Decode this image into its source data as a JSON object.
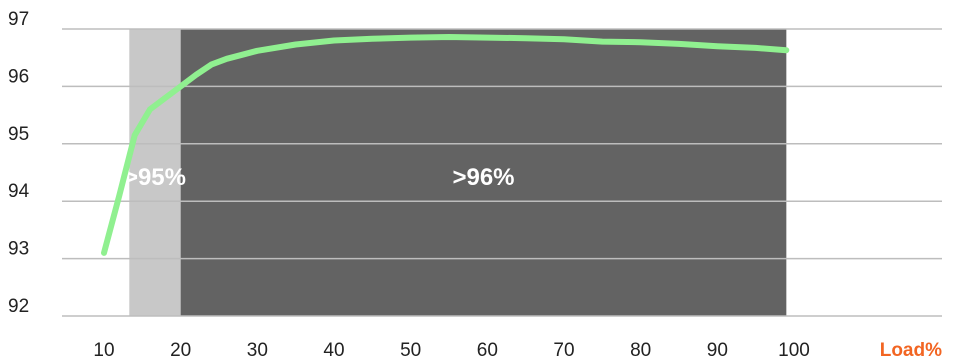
{
  "chart_data": {
    "type": "line",
    "xlabel": "Load%",
    "ylabel": "",
    "xlim": [
      10,
      100
    ],
    "ylim": [
      92,
      97
    ],
    "x_ticks": [
      10,
      20,
      30,
      40,
      50,
      60,
      70,
      80,
      90,
      100
    ],
    "y_ticks": [
      92,
      93,
      94,
      95,
      96,
      97
    ],
    "grid": "horizontal",
    "regions": [
      {
        "label": ">95%",
        "x_start": 13.3,
        "x_end": 20,
        "color": "#c8c8c8"
      },
      {
        "label": ">96%",
        "x_start": 20,
        "x_end": 99,
        "color": "#636363"
      }
    ],
    "series": [
      {
        "color": "#90f090",
        "x": [
          10,
          12,
          14,
          16,
          18,
          20,
          22,
          24,
          26,
          28,
          30,
          35,
          40,
          45,
          50,
          55,
          60,
          65,
          70,
          75,
          80,
          85,
          90,
          95,
          99
        ],
        "y": [
          93.1,
          94.1,
          95.15,
          95.6,
          95.8,
          96.0,
          96.2,
          96.38,
          96.48,
          96.55,
          96.62,
          96.73,
          96.8,
          96.83,
          96.85,
          96.86,
          96.85,
          96.84,
          96.82,
          96.78,
          96.77,
          96.74,
          96.7,
          96.67,
          96.63
        ]
      }
    ]
  },
  "colors": {
    "axis_label": "#f26522",
    "grid": "#bdbdbd",
    "tick_text": "#222222"
  }
}
